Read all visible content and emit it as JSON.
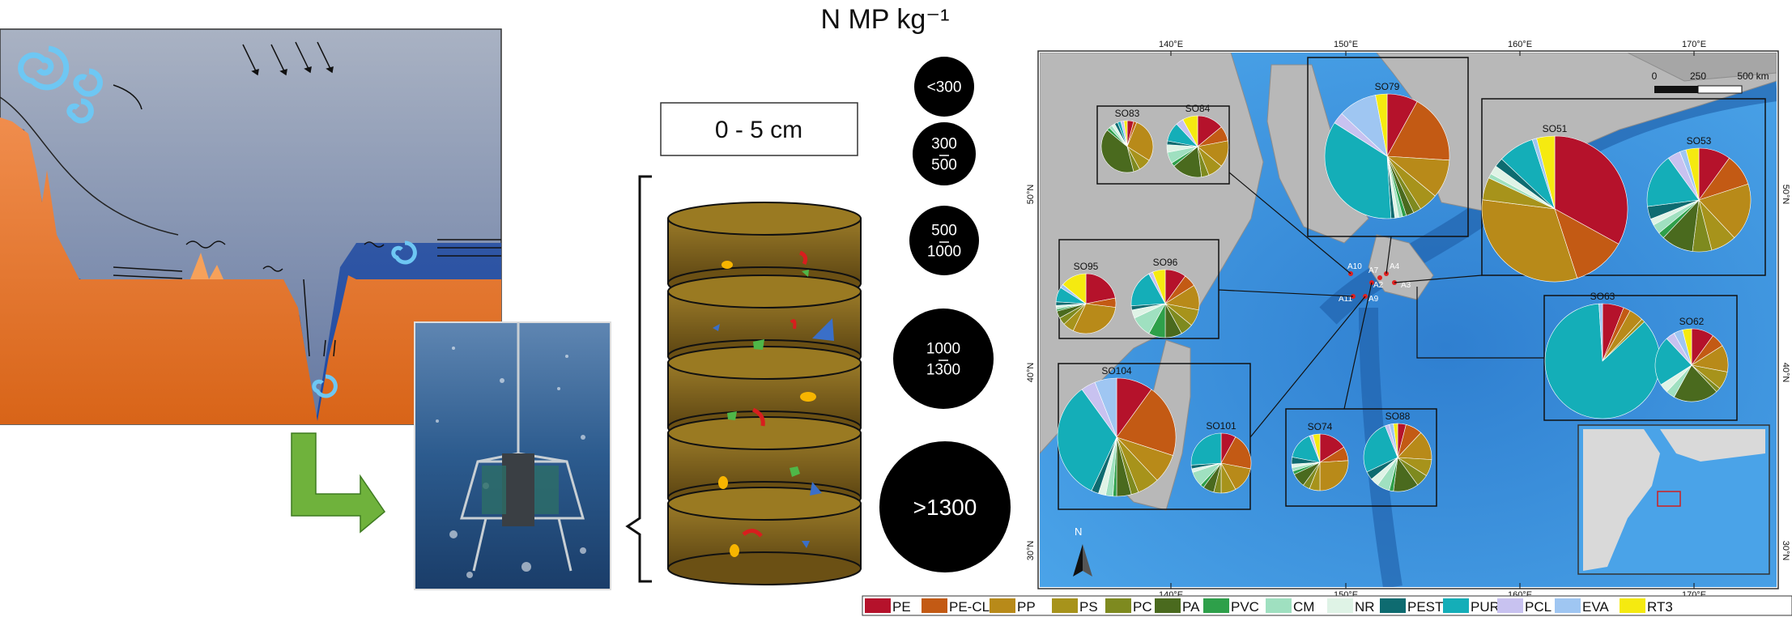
{
  "title": "N MP kg⁻¹",
  "depth_label": "0 - 5 cm",
  "size_scale": [
    "<300",
    "300\n500",
    "500\n1000",
    "1000\n1300",
    ">1300"
  ],
  "map": {
    "lon_labels": [
      "140°E",
      "150°E",
      "160°E",
      "170°E"
    ],
    "lat_labels": [
      "50°N",
      "40°N",
      "30°N"
    ],
    "scale_labels": [
      "0",
      "250",
      "500 km"
    ],
    "north_label": "N",
    "station_labels": [
      "A10",
      "A2",
      "A4",
      "A3",
      "A11",
      "A9",
      "A7"
    ],
    "pie_stations": [
      "SO83",
      "SO84",
      "SO79",
      "SO51",
      "SO53",
      "SO95",
      "SO96",
      "SO63",
      "SO62",
      "SO104",
      "SO101",
      "SO74",
      "SO88"
    ]
  },
  "legend": [
    {
      "label": "PE",
      "color": "#b5122b"
    },
    {
      "label": "PE-CL",
      "color": "#c35a14"
    },
    {
      "label": "PP",
      "color": "#b88a19"
    },
    {
      "label": "PS",
      "color": "#a7931b"
    },
    {
      "label": "PC",
      "color": "#7e8a1f"
    },
    {
      "label": "PA",
      "color": "#4a6a1e"
    },
    {
      "label": "PVC",
      "color": "#2ea04a"
    },
    {
      "label": "CM",
      "color": "#9fe0c0"
    },
    {
      "label": "NR",
      "color": "#dff3e6"
    },
    {
      "label": "PEST",
      "color": "#0e6b70"
    },
    {
      "label": "PUR",
      "color": "#14aeb8"
    },
    {
      "label": "PCL",
      "color": "#c8c2f0"
    },
    {
      "label": "EVA",
      "color": "#9fc6f2"
    },
    {
      "label": "RT3",
      "color": "#f5ea10"
    }
  ],
  "chart_data": {
    "type": "pie",
    "categories": [
      "PE",
      "PE-CL",
      "PP",
      "PS",
      "PC",
      "PA",
      "PVC",
      "CM",
      "NR",
      "PEST",
      "PUR",
      "PCL",
      "EVA",
      "RT3"
    ],
    "series": [
      {
        "name": "SO83",
        "values": [
          4,
          2,
          28,
          8,
          4,
          40,
          2,
          2,
          2,
          2,
          2,
          2,
          0,
          2
        ]
      },
      {
        "name": "SO84",
        "values": [
          14,
          8,
          14,
          8,
          4,
          16,
          2,
          6,
          4,
          2,
          10,
          4,
          0,
          8
        ]
      },
      {
        "name": "SO79",
        "values": [
          8,
          18,
          10,
          5,
          2,
          2,
          1,
          1,
          1,
          1,
          35,
          3,
          10,
          3
        ]
      },
      {
        "name": "SO51",
        "values": [
          33,
          12,
          32,
          5,
          0,
          0,
          0,
          1,
          2,
          2,
          8,
          0,
          1,
          4
        ]
      },
      {
        "name": "SO53",
        "values": [
          10,
          10,
          18,
          8,
          6,
          10,
          2,
          3,
          2,
          4,
          17,
          4,
          2,
          4
        ]
      },
      {
        "name": "SO95",
        "values": [
          22,
          5,
          30,
          6,
          4,
          4,
          1,
          1,
          1,
          2,
          8,
          0,
          2,
          14
        ]
      },
      {
        "name": "SO96",
        "values": [
          10,
          6,
          12,
          8,
          6,
          8,
          8,
          10,
          4,
          2,
          18,
          2,
          0,
          6
        ]
      },
      {
        "name": "SO63",
        "values": [
          6,
          2,
          4,
          1,
          0,
          0,
          0,
          0,
          0,
          0,
          86,
          0,
          1,
          0
        ]
      },
      {
        "name": "SO62",
        "values": [
          10,
          6,
          12,
          8,
          2,
          20,
          0,
          4,
          4,
          0,
          22,
          4,
          4,
          4
        ]
      },
      {
        "name": "SO104",
        "values": [
          10,
          20,
          8,
          6,
          2,
          4,
          1,
          2,
          2,
          2,
          33,
          4,
          6,
          0
        ]
      },
      {
        "name": "SO101",
        "values": [
          8,
          20,
          14,
          8,
          4,
          6,
          2,
          8,
          2,
          2,
          26,
          0,
          0,
          0
        ]
      },
      {
        "name": "SO74",
        "values": [
          16,
          8,
          26,
          6,
          4,
          8,
          2,
          2,
          2,
          4,
          16,
          2,
          0,
          4
        ]
      },
      {
        "name": "SO88",
        "values": [
          4,
          8,
          14,
          8,
          6,
          12,
          2,
          6,
          4,
          4,
          26,
          2,
          2,
          2
        ]
      }
    ]
  }
}
